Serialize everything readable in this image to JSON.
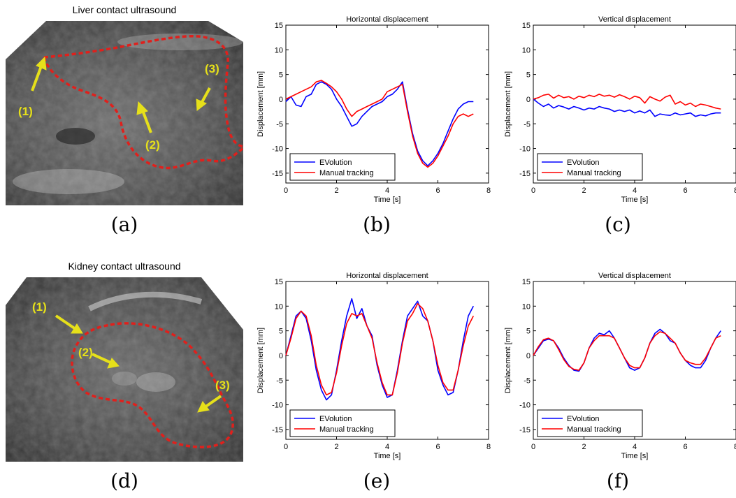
{
  "images": [
    {
      "title": "Liver contact ultrasound",
      "panel": "(a)",
      "annotations": [
        "(1)",
        "(2)",
        "(3)"
      ],
      "colors": {
        "contour": "#e0201c",
        "arrow": "#e6e01a"
      }
    },
    {
      "title": "Kidney contact ultrasound",
      "panel": "(d)",
      "annotations": [
        "(1)",
        "(2)",
        "(3)"
      ],
      "colors": {
        "contour": "#e0201c",
        "arrow": "#e6e01a"
      }
    }
  ],
  "chart_data": [
    {
      "panel": "(b)",
      "type": "line",
      "title": "Horizontal displacement",
      "xlabel": "Time [s]",
      "ylabel": "Displacement [mm]",
      "xlim": [
        0,
        8
      ],
      "ylim": [
        -17,
        15
      ],
      "xticks": [
        0,
        2,
        4,
        6,
        8
      ],
      "yticks": [
        -15,
        -10,
        -5,
        0,
        5,
        10,
        15
      ],
      "grid": false,
      "legend": "bottom-left",
      "series": [
        {
          "name": "EVolution",
          "color": "#0000ff",
          "x": [
            0,
            0.2,
            0.4,
            0.6,
            0.8,
            1.0,
            1.2,
            1.4,
            1.6,
            1.8,
            2.0,
            2.2,
            2.4,
            2.6,
            2.8,
            3.0,
            3.2,
            3.4,
            3.6,
            3.8,
            4.0,
            4.2,
            4.4,
            4.6,
            4.8,
            5.0,
            5.2,
            5.4,
            5.6,
            5.8,
            6.0,
            6.2,
            6.4,
            6.6,
            6.8,
            7.0,
            7.2,
            7.4
          ],
          "y": [
            -0.5,
            0.5,
            -1.2,
            -1.5,
            0.5,
            1.0,
            3.0,
            3.5,
            3.0,
            2.0,
            0.0,
            -1.5,
            -3.5,
            -5.5,
            -5.0,
            -3.5,
            -2.5,
            -1.5,
            -1.0,
            -0.5,
            0.5,
            1.0,
            2.0,
            3.5,
            -2.0,
            -7.0,
            -10.5,
            -12.5,
            -13.5,
            -12.5,
            -11.0,
            -9.0,
            -6.5,
            -4.0,
            -2.0,
            -1.0,
            -0.5,
            -0.5
          ]
        },
        {
          "name": "Manual tracking",
          "color": "#ff0000",
          "x": [
            0,
            0.2,
            0.4,
            0.6,
            0.8,
            1.0,
            1.2,
            1.4,
            1.6,
            1.8,
            2.0,
            2.2,
            2.4,
            2.6,
            2.8,
            3.0,
            3.2,
            3.4,
            3.6,
            3.8,
            4.0,
            4.2,
            4.4,
            4.6,
            4.8,
            5.0,
            5.2,
            5.4,
            5.6,
            5.8,
            6.0,
            6.2,
            6.4,
            6.6,
            6.8,
            7.0,
            7.2,
            7.4
          ],
          "y": [
            0.0,
            0.5,
            1.0,
            1.5,
            2.0,
            2.5,
            3.5,
            3.8,
            3.2,
            2.5,
            1.5,
            0.0,
            -2.0,
            -3.5,
            -2.5,
            -2.0,
            -1.5,
            -1.0,
            -0.5,
            0.0,
            1.5,
            2.0,
            2.5,
            3.0,
            -2.5,
            -7.5,
            -11.0,
            -13.0,
            -13.8,
            -13.0,
            -11.5,
            -9.5,
            -7.5,
            -5.0,
            -3.5,
            -3.0,
            -3.5,
            -3.0
          ]
        }
      ]
    },
    {
      "panel": "(c)",
      "type": "line",
      "title": "Vertical displacement",
      "xlabel": "Time [s]",
      "ylabel": "Displacement [mm]",
      "xlim": [
        0,
        8
      ],
      "ylim": [
        -17,
        15
      ],
      "xticks": [
        0,
        2,
        4,
        6,
        8
      ],
      "yticks": [
        -15,
        -10,
        -5,
        0,
        5,
        10,
        15
      ],
      "grid": false,
      "legend": "bottom-left",
      "series": [
        {
          "name": "EVolution",
          "color": "#0000ff",
          "x": [
            0,
            0.2,
            0.4,
            0.6,
            0.8,
            1.0,
            1.2,
            1.4,
            1.6,
            1.8,
            2.0,
            2.2,
            2.4,
            2.6,
            2.8,
            3.0,
            3.2,
            3.4,
            3.6,
            3.8,
            4.0,
            4.2,
            4.4,
            4.6,
            4.8,
            5.0,
            5.2,
            5.4,
            5.6,
            5.8,
            6.0,
            6.2,
            6.4,
            6.6,
            6.8,
            7.0,
            7.2,
            7.4
          ],
          "y": [
            0.0,
            -0.8,
            -1.5,
            -1.0,
            -1.8,
            -1.3,
            -1.6,
            -2.0,
            -1.5,
            -1.8,
            -2.2,
            -1.8,
            -2.0,
            -1.5,
            -1.8,
            -2.0,
            -2.5,
            -2.2,
            -2.5,
            -2.2,
            -2.8,
            -2.4,
            -2.8,
            -2.2,
            -3.5,
            -3.0,
            -3.2,
            -3.3,
            -2.8,
            -3.2,
            -3.0,
            -2.8,
            -3.5,
            -3.2,
            -3.4,
            -3.0,
            -2.8,
            -2.8
          ]
        },
        {
          "name": "Manual tracking",
          "color": "#ff0000",
          "x": [
            0,
            0.2,
            0.4,
            0.6,
            0.8,
            1.0,
            1.2,
            1.4,
            1.6,
            1.8,
            2.0,
            2.2,
            2.4,
            2.6,
            2.8,
            3.0,
            3.2,
            3.4,
            3.6,
            3.8,
            4.0,
            4.2,
            4.4,
            4.6,
            4.8,
            5.0,
            5.2,
            5.4,
            5.6,
            5.8,
            6.0,
            6.2,
            6.4,
            6.6,
            6.8,
            7.0,
            7.2,
            7.4
          ],
          "y": [
            0.0,
            0.3,
            0.8,
            1.0,
            0.2,
            0.8,
            0.3,
            0.5,
            0.0,
            0.6,
            0.3,
            0.8,
            0.5,
            1.0,
            0.6,
            0.8,
            0.4,
            0.9,
            0.5,
            0.0,
            0.6,
            0.3,
            -0.8,
            0.5,
            0.0,
            -0.4,
            0.4,
            0.8,
            -1.0,
            -0.5,
            -1.2,
            -0.8,
            -1.5,
            -1.0,
            -1.2,
            -1.5,
            -1.8,
            -2.0
          ]
        }
      ]
    },
    {
      "panel": "(e)",
      "type": "line",
      "title": "Horizontal displacement",
      "xlabel": "Time [s]",
      "ylabel": "Displacement [mm]",
      "xlim": [
        0,
        8
      ],
      "ylim": [
        -17,
        15
      ],
      "xticks": [
        0,
        2,
        4,
        6,
        8
      ],
      "yticks": [
        -15,
        -10,
        -5,
        0,
        5,
        10,
        15
      ],
      "grid": false,
      "legend": "bottom-left",
      "series": [
        {
          "name": "EVolution",
          "color": "#0000ff",
          "x": [
            0,
            0.2,
            0.4,
            0.6,
            0.8,
            1.0,
            1.2,
            1.4,
            1.6,
            1.8,
            2.0,
            2.2,
            2.4,
            2.6,
            2.8,
            3.0,
            3.2,
            3.4,
            3.6,
            3.8,
            4.0,
            4.2,
            4.4,
            4.6,
            4.8,
            5.0,
            5.2,
            5.4,
            5.6,
            5.8,
            6.0,
            6.2,
            6.4,
            6.6,
            6.8,
            7.0,
            7.2,
            7.4
          ],
          "y": [
            0.0,
            4.0,
            8.0,
            9.0,
            7.5,
            3.0,
            -3.0,
            -7.0,
            -9.0,
            -8.0,
            -3.0,
            3.0,
            8.0,
            11.5,
            7.5,
            9.5,
            6.0,
            4.0,
            -2.0,
            -6.0,
            -8.5,
            -8.0,
            -3.0,
            3.0,
            8.0,
            9.5,
            11.0,
            8.0,
            7.0,
            3.0,
            -3.0,
            -6.0,
            -8.0,
            -7.5,
            -3.0,
            3.0,
            8.0,
            10.0
          ]
        },
        {
          "name": "Manual tracking",
          "color": "#ff0000",
          "x": [
            0,
            0.2,
            0.4,
            0.6,
            0.8,
            1.0,
            1.2,
            1.4,
            1.6,
            1.8,
            2.0,
            2.2,
            2.4,
            2.6,
            2.8,
            3.0,
            3.2,
            3.4,
            3.6,
            3.8,
            4.0,
            4.2,
            4.4,
            4.6,
            4.8,
            5.0,
            5.2,
            5.4,
            5.6,
            5.8,
            6.0,
            6.2,
            6.4,
            6.6,
            6.8,
            7.0,
            7.2,
            7.4
          ],
          "y": [
            0.0,
            3.5,
            7.5,
            9.0,
            8.0,
            4.0,
            -2.0,
            -6.0,
            -8.0,
            -7.5,
            -3.5,
            2.0,
            6.5,
            8.5,
            8.0,
            8.5,
            6.0,
            3.5,
            -1.5,
            -5.5,
            -8.0,
            -8.0,
            -3.5,
            2.5,
            7.0,
            8.5,
            10.5,
            9.5,
            7.0,
            3.0,
            -2.0,
            -5.5,
            -7.0,
            -7.0,
            -3.0,
            2.0,
            6.0,
            8.0
          ]
        }
      ]
    },
    {
      "panel": "(f)",
      "type": "line",
      "title": "Vertical displacement",
      "xlabel": "Time [s]",
      "ylabel": "Displacement [mm]",
      "xlim": [
        0,
        8
      ],
      "ylim": [
        -17,
        15
      ],
      "xticks": [
        0,
        2,
        4,
        6,
        8
      ],
      "yticks": [
        -15,
        -10,
        -5,
        0,
        5,
        10,
        15
      ],
      "grid": false,
      "legend": "bottom-left",
      "series": [
        {
          "name": "EVolution",
          "color": "#0000ff",
          "x": [
            0,
            0.2,
            0.4,
            0.6,
            0.8,
            1.0,
            1.2,
            1.4,
            1.6,
            1.8,
            2.0,
            2.2,
            2.4,
            2.6,
            2.8,
            3.0,
            3.2,
            3.4,
            3.6,
            3.8,
            4.0,
            4.2,
            4.4,
            4.6,
            4.8,
            5.0,
            5.2,
            5.4,
            5.6,
            5.8,
            6.0,
            6.2,
            6.4,
            6.6,
            6.8,
            7.0,
            7.2,
            7.4
          ],
          "y": [
            0.0,
            1.5,
            3.0,
            3.3,
            3.0,
            1.5,
            -0.5,
            -2.0,
            -3.0,
            -3.2,
            -1.5,
            1.5,
            3.5,
            4.5,
            4.2,
            5.0,
            3.5,
            1.5,
            -0.5,
            -2.5,
            -3.0,
            -2.5,
            -0.5,
            2.5,
            4.5,
            5.3,
            4.5,
            3.0,
            2.5,
            0.5,
            -1.0,
            -2.0,
            -2.5,
            -2.5,
            -1.0,
            1.5,
            3.5,
            5.0
          ]
        },
        {
          "name": "Manual tracking",
          "color": "#ff0000",
          "x": [
            0,
            0.2,
            0.4,
            0.6,
            0.8,
            1.0,
            1.2,
            1.4,
            1.6,
            1.8,
            2.0,
            2.2,
            2.4,
            2.6,
            2.8,
            3.0,
            3.2,
            3.4,
            3.6,
            3.8,
            4.0,
            4.2,
            4.4,
            4.6,
            4.8,
            5.0,
            5.2,
            5.4,
            5.6,
            5.8,
            6.0,
            6.2,
            6.4,
            6.6,
            6.8,
            7.0,
            7.2,
            7.4
          ],
          "y": [
            0.0,
            1.8,
            3.2,
            3.5,
            3.0,
            1.2,
            -0.8,
            -2.2,
            -2.8,
            -3.0,
            -1.5,
            1.5,
            3.0,
            4.0,
            4.0,
            4.0,
            3.5,
            1.5,
            -0.5,
            -2.0,
            -2.5,
            -2.5,
            -0.5,
            2.5,
            4.0,
            4.8,
            4.5,
            3.5,
            2.5,
            0.5,
            -1.0,
            -1.5,
            -1.8,
            -1.8,
            -0.5,
            1.5,
            3.5,
            4.0
          ]
        }
      ]
    }
  ]
}
